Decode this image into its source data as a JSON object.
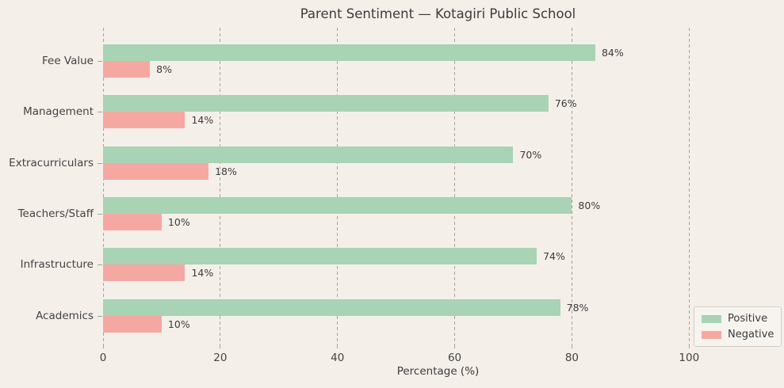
{
  "chart_data": {
    "type": "bar",
    "orientation": "horizontal",
    "title": "Parent Sentiment — Kotagiri Public School",
    "categories": [
      "Fee Value",
      "Management",
      "Extracurriculars",
      "Teachers/Staff",
      "Infrastructure",
      "Academics"
    ],
    "series": [
      {
        "name": "Positive",
        "values": [
          84,
          76,
          70,
          80,
          74,
          78
        ]
      },
      {
        "name": "Negative",
        "values": [
          8,
          14,
          18,
          10,
          14,
          10
        ]
      }
    ],
    "value_label_suffix": "%",
    "xlabel": "Percentage (%)",
    "xticks": [
      0,
      20,
      40,
      60,
      80,
      100
    ],
    "xlim": [
      0,
      114.3
    ],
    "grid": "vertical-dashed",
    "legend": {
      "position": "lower-right",
      "entries": [
        {
          "label": "Positive",
          "color": "#a8d3b4"
        },
        {
          "label": "Negative",
          "color": "#f5a8a2"
        }
      ]
    }
  },
  "colors": {
    "background": "#f4efe9",
    "positive": "#a8d3b4",
    "negative": "#f5a8a2",
    "grid": "#a9a39c",
    "text": "#3d3d3d",
    "tick_text": "#444444",
    "legend_background": "#f7f3ee",
    "legend_border": "#d3cec8"
  }
}
